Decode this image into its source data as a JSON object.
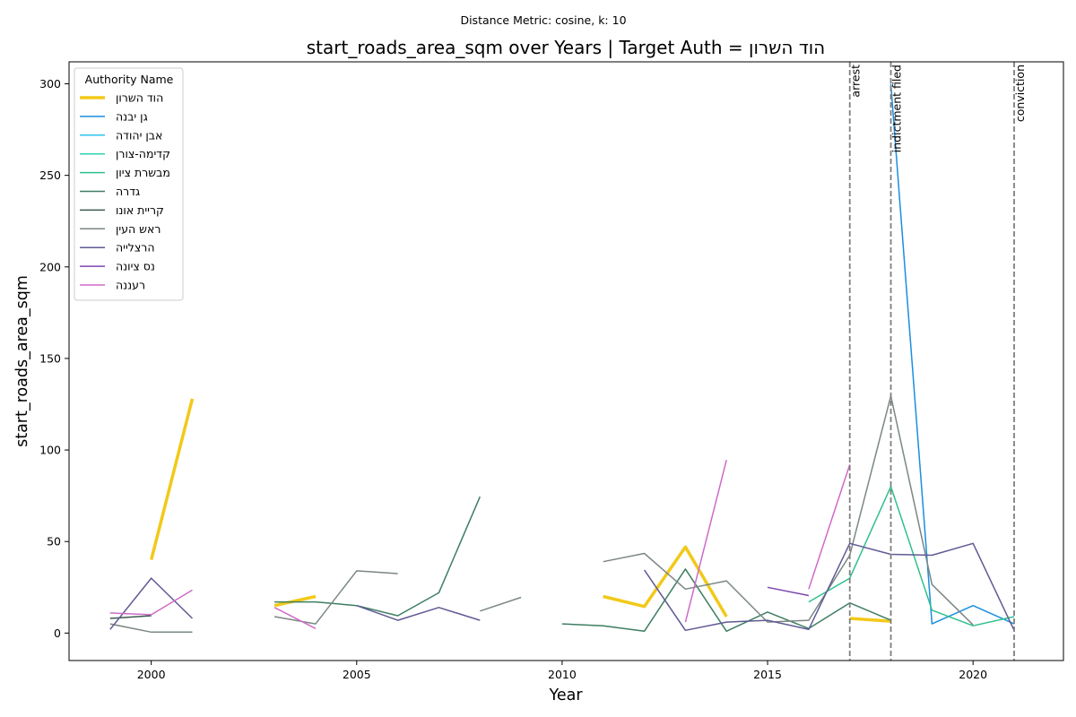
{
  "chart_data": {
    "type": "line",
    "suptitle": "Distance Metric: cosine, k: 10",
    "title": "start_roads_area_sqm over Years | Target Auth = הוד השרון",
    "xlabel": "Year",
    "ylabel": "start_roads_area_sqm",
    "xlim": [
      1998,
      2022.2
    ],
    "ylim": [
      -15,
      312
    ],
    "xticks": [
      2000,
      2005,
      2010,
      2015,
      2020
    ],
    "yticks": [
      0,
      50,
      100,
      150,
      200,
      250,
      300
    ],
    "grid": false,
    "legend": {
      "title": "Authority Name",
      "placement": "top-left"
    },
    "events": [
      {
        "x": 2017,
        "label": "arrest"
      },
      {
        "x": 2018,
        "label": "indictment filed"
      },
      {
        "x": 2021,
        "label": "conviction"
      }
    ],
    "series": [
      {
        "name": "הוד השרון",
        "color": "#f2c919",
        "width": 3.5,
        "points": [
          [
            2000,
            40
          ],
          [
            2001,
            128
          ],
          [
            2003,
            15
          ],
          [
            2004,
            20
          ],
          [
            2011,
            20
          ],
          [
            2012,
            14.5
          ],
          [
            2013,
            47
          ],
          [
            2014,
            9
          ],
          [
            2017,
            8
          ],
          [
            2018,
            6.5
          ]
        ]
      },
      {
        "name": "גן יבנה",
        "color": "#1a8ee0",
        "width": 1.5,
        "points": [
          [
            2018,
            300
          ],
          [
            2019,
            5
          ],
          [
            2020,
            15
          ],
          [
            2021,
            5
          ]
        ]
      },
      {
        "name": "אבן יהודה",
        "color": "#2ec3ec",
        "width": 1.5,
        "points": []
      },
      {
        "name": "קדימה-צורן",
        "color": "#2ed3b4",
        "width": 1.5,
        "points": []
      },
      {
        "name": "מבשרת ציון",
        "color": "#2fc08a",
        "width": 1.5,
        "points": [
          [
            2016,
            17
          ],
          [
            2017,
            30
          ],
          [
            2018,
            80
          ],
          [
            2019,
            12.5
          ],
          [
            2020,
            4
          ],
          [
            2021,
            9
          ]
        ]
      },
      {
        "name": "גדרה",
        "color": "#3d7e62",
        "width": 1.5,
        "points": [
          [
            2003,
            17
          ],
          [
            2004,
            17
          ],
          [
            2005,
            15
          ],
          [
            2006,
            9.5
          ],
          [
            2007,
            22
          ],
          [
            2008,
            74.5
          ],
          [
            2010,
            5
          ],
          [
            2011,
            4
          ],
          [
            2012,
            1
          ],
          [
            2013,
            35
          ],
          [
            2014,
            1
          ],
          [
            2015,
            11.5
          ],
          [
            2016,
            2.5
          ],
          [
            2017,
            16.5
          ],
          [
            2018,
            7
          ]
        ]
      },
      {
        "name": "קריית אונו",
        "color": "#3b5a4e",
        "width": 1.5,
        "points": [
          [
            1999,
            8
          ],
          [
            2000,
            9.5
          ]
        ]
      },
      {
        "name": "ראש העין",
        "color": "#7b8783",
        "width": 1.5,
        "points": [
          [
            1999,
            5
          ],
          [
            2000,
            0.5
          ],
          [
            2001,
            0.5
          ],
          [
            2003,
            9
          ],
          [
            2004,
            5
          ],
          [
            2005,
            34
          ],
          [
            2006,
            32.5
          ],
          [
            2008,
            12
          ],
          [
            2009,
            19.5
          ],
          [
            2011,
            39
          ],
          [
            2012,
            43.5
          ],
          [
            2013,
            24
          ],
          [
            2014,
            28.5
          ],
          [
            2015,
            6
          ],
          [
            2016,
            7
          ],
          [
            2017,
            42.5
          ],
          [
            2018,
            129.5
          ],
          [
            2019,
            26.5
          ],
          [
            2020,
            4.5
          ]
        ]
      },
      {
        "name": "הרצלייה",
        "color": "#5f5a94",
        "width": 1.5,
        "points": [
          [
            1999,
            2
          ],
          [
            2000,
            30
          ],
          [
            2001,
            8
          ],
          [
            2003,
            26
          ],
          [
            2005,
            15
          ],
          [
            2006,
            7
          ],
          [
            2007,
            14
          ],
          [
            2008,
            7
          ],
          [
            2012,
            34.5
          ],
          [
            2013,
            1.5
          ],
          [
            2014,
            6
          ],
          [
            2015,
            7
          ],
          [
            2016,
            2
          ],
          [
            2017,
            49
          ],
          [
            2018,
            43
          ],
          [
            2019,
            42.5
          ],
          [
            2020,
            49
          ],
          [
            2021,
            1.5
          ]
        ]
      },
      {
        "name": "נס ציונה",
        "color": "#7c44ad",
        "width": 1.5,
        "points": [
          [
            2015,
            25
          ],
          [
            2016,
            20.5
          ]
        ]
      },
      {
        "name": "רעננה",
        "color": "#cf6ac8",
        "width": 1.5,
        "points": [
          [
            1999,
            11
          ],
          [
            2000,
            10
          ],
          [
            2001,
            23.5
          ],
          [
            2003,
            14
          ],
          [
            2004,
            2.5
          ],
          [
            2013,
            6
          ],
          [
            2014,
            94.5
          ],
          [
            2016,
            24
          ],
          [
            2017,
            92
          ]
        ]
      }
    ]
  }
}
